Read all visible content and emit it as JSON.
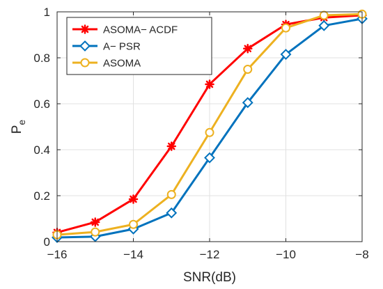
{
  "chart_data": {
    "type": "line",
    "xlabel": "SNR(dB)",
    "ylabel": "P",
    "ylabel_subscript": "e",
    "xlim": [
      -16,
      -8
    ],
    "ylim": [
      0,
      1
    ],
    "xticks": [
      -16,
      -14,
      -12,
      -10,
      -8
    ],
    "xtick_labels": [
      "−16",
      "−14",
      "−12",
      "−10",
      "−8"
    ],
    "yticks": [
      0,
      0.2,
      0.4,
      0.6,
      0.8,
      1
    ],
    "ytick_labels": [
      "0",
      "0.2",
      "0.4",
      "0.6",
      "0.8",
      "1"
    ],
    "grid": true,
    "legend_position": "top-left",
    "x": [
      -16,
      -15,
      -14,
      -13,
      -12,
      -11,
      -10,
      -9,
      -8
    ],
    "series": [
      {
        "name": "ASOMA− ACDF",
        "color": "#ff0000",
        "marker": "asterisk",
        "values": [
          0.04,
          0.085,
          0.185,
          0.415,
          0.685,
          0.84,
          0.945,
          0.975,
          0.985
        ]
      },
      {
        "name": "A− PSR",
        "color": "#0072bd",
        "marker": "diamond",
        "values": [
          0.018,
          0.022,
          0.055,
          0.125,
          0.365,
          0.605,
          0.815,
          0.94,
          0.97
        ]
      },
      {
        "name": "ASOMA",
        "color": "#edb120",
        "marker": "circle",
        "values": [
          0.03,
          0.042,
          0.075,
          0.205,
          0.475,
          0.75,
          0.93,
          0.985,
          0.99
        ]
      }
    ]
  }
}
